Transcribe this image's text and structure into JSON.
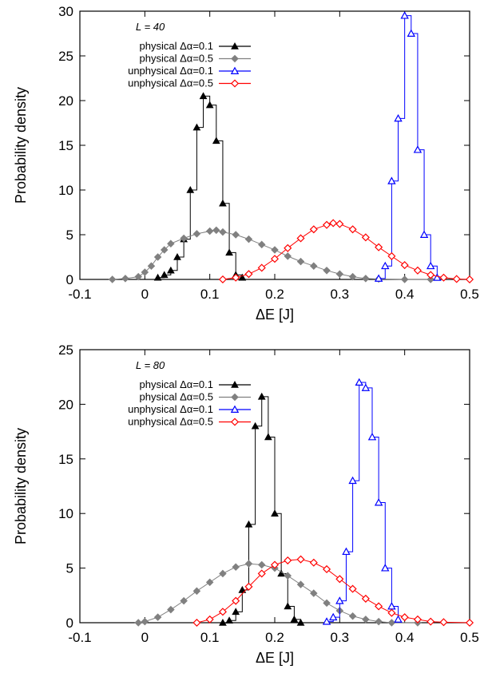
{
  "chart_data": [
    {
      "type": "line",
      "panel": "top",
      "legend_title": "L = 40",
      "xlabel": "ΔE [J]",
      "ylabel": "Probability density",
      "xlim": [
        -0.1,
        0.5
      ],
      "ylim": [
        0,
        30
      ],
      "xticks": [
        -0.1,
        0,
        0.1,
        0.2,
        0.3,
        0.4,
        0.5
      ],
      "yticks": [
        0,
        5,
        10,
        15,
        20,
        25,
        30
      ],
      "grid": false,
      "legend_position": "top-left",
      "series": [
        {
          "name": "physical Δα=0.1",
          "color": "#000000",
          "marker": "filled-triangle",
          "points": [
            [
              0.02,
              0.2
            ],
            [
              0.03,
              0.5
            ],
            [
              0.04,
              1.0
            ],
            [
              0.05,
              2.5
            ],
            [
              0.06,
              4.5
            ],
            [
              0.07,
              10.0
            ],
            [
              0.08,
              17.0
            ],
            [
              0.09,
              20.5
            ],
            [
              0.1,
              19.5
            ],
            [
              0.11,
              15.5
            ],
            [
              0.12,
              8.5
            ],
            [
              0.13,
              3.0
            ],
            [
              0.14,
              0.5
            ],
            [
              0.15,
              0.2
            ]
          ]
        },
        {
          "name": "physical Δα=0.5",
          "color": "#808080",
          "marker": "filled-diamond",
          "points": [
            [
              -0.05,
              0.0
            ],
            [
              -0.03,
              0.1
            ],
            [
              -0.01,
              0.3
            ],
            [
              0.0,
              0.8
            ],
            [
              0.01,
              1.5
            ],
            [
              0.02,
              2.5
            ],
            [
              0.03,
              3.3
            ],
            [
              0.04,
              4.0
            ],
            [
              0.06,
              4.6
            ],
            [
              0.08,
              5.1
            ],
            [
              0.1,
              5.4
            ],
            [
              0.11,
              5.5
            ],
            [
              0.12,
              5.3
            ],
            [
              0.14,
              5.0
            ],
            [
              0.16,
              4.5
            ],
            [
              0.18,
              3.9
            ],
            [
              0.2,
              3.3
            ],
            [
              0.22,
              2.6
            ],
            [
              0.24,
              2.0
            ],
            [
              0.26,
              1.5
            ],
            [
              0.28,
              1.0
            ],
            [
              0.3,
              0.6
            ],
            [
              0.32,
              0.3
            ],
            [
              0.34,
              0.1
            ],
            [
              0.36,
              0.05
            ],
            [
              0.4,
              0.0
            ],
            [
              0.44,
              0.0
            ]
          ]
        },
        {
          "name": "unphysical Δα=0.1",
          "color": "#0000ff",
          "marker": "open-triangle",
          "points": [
            [
              0.36,
              0.1
            ],
            [
              0.37,
              1.5
            ],
            [
              0.38,
              11.0
            ],
            [
              0.39,
              18.0
            ],
            [
              0.4,
              29.5
            ],
            [
              0.41,
              27.5
            ],
            [
              0.42,
              14.5
            ],
            [
              0.43,
              5.0
            ],
            [
              0.44,
              1.5
            ],
            [
              0.45,
              0.2
            ]
          ]
        },
        {
          "name": "unphysical Δα=0.5",
          "color": "#ff0000",
          "marker": "open-diamond",
          "points": [
            [
              0.12,
              0.0
            ],
            [
              0.14,
              0.2
            ],
            [
              0.16,
              0.6
            ],
            [
              0.18,
              1.3
            ],
            [
              0.2,
              2.3
            ],
            [
              0.22,
              3.5
            ],
            [
              0.24,
              4.6
            ],
            [
              0.26,
              5.6
            ],
            [
              0.28,
              6.1
            ],
            [
              0.29,
              6.3
            ],
            [
              0.3,
              6.2
            ],
            [
              0.32,
              5.6
            ],
            [
              0.34,
              4.7
            ],
            [
              0.36,
              3.6
            ],
            [
              0.38,
              2.6
            ],
            [
              0.4,
              1.6
            ],
            [
              0.42,
              1.0
            ],
            [
              0.44,
              0.5
            ],
            [
              0.46,
              0.2
            ],
            [
              0.48,
              0.05
            ],
            [
              0.5,
              0.0
            ]
          ]
        }
      ]
    },
    {
      "type": "line",
      "panel": "bottom",
      "legend_title": "L = 80",
      "xlabel": "ΔE [J]",
      "ylabel": "Probability density",
      "xlim": [
        -0.1,
        0.5
      ],
      "ylim": [
        0,
        25
      ],
      "xticks": [
        -0.1,
        0,
        0.1,
        0.2,
        0.3,
        0.4,
        0.5
      ],
      "yticks": [
        0,
        5,
        10,
        15,
        20,
        25
      ],
      "grid": false,
      "legend_position": "top-left",
      "series": [
        {
          "name": "physical Δα=0.1",
          "color": "#000000",
          "marker": "filled-triangle",
          "points": [
            [
              0.12,
              0.0
            ],
            [
              0.13,
              0.2
            ],
            [
              0.14,
              1.0
            ],
            [
              0.15,
              3.0
            ],
            [
              0.16,
              9.0
            ],
            [
              0.17,
              18.0
            ],
            [
              0.18,
              20.7
            ],
            [
              0.19,
              17.0
            ],
            [
              0.2,
              10.0
            ],
            [
              0.21,
              4.5
            ],
            [
              0.22,
              1.5
            ],
            [
              0.23,
              0.3
            ],
            [
              0.24,
              0.0
            ]
          ]
        },
        {
          "name": "physical Δα=0.5",
          "color": "#808080",
          "marker": "filled-diamond",
          "points": [
            [
              -0.01,
              0.0
            ],
            [
              0.0,
              0.1
            ],
            [
              0.02,
              0.5
            ],
            [
              0.04,
              1.2
            ],
            [
              0.06,
              2.0
            ],
            [
              0.08,
              2.9
            ],
            [
              0.1,
              3.7
            ],
            [
              0.12,
              4.5
            ],
            [
              0.14,
              5.1
            ],
            [
              0.16,
              5.4
            ],
            [
              0.18,
              5.3
            ],
            [
              0.2,
              5.0
            ],
            [
              0.22,
              4.3
            ],
            [
              0.24,
              3.5
            ],
            [
              0.26,
              2.7
            ],
            [
              0.28,
              1.8
            ],
            [
              0.3,
              1.1
            ],
            [
              0.32,
              0.6
            ],
            [
              0.34,
              0.3
            ],
            [
              0.36,
              0.1
            ],
            [
              0.38,
              0.0
            ],
            [
              0.42,
              0.0
            ]
          ]
        },
        {
          "name": "unphysical Δα=0.1",
          "color": "#0000ff",
          "marker": "open-triangle",
          "points": [
            [
              0.28,
              0.1
            ],
            [
              0.29,
              0.5
            ],
            [
              0.3,
              2.0
            ],
            [
              0.31,
              6.5
            ],
            [
              0.32,
              13.0
            ],
            [
              0.33,
              22.0
            ],
            [
              0.34,
              21.5
            ],
            [
              0.35,
              17.0
            ],
            [
              0.36,
              11.0
            ],
            [
              0.37,
              5.0
            ],
            [
              0.38,
              1.5
            ],
            [
              0.39,
              0.3
            ]
          ]
        },
        {
          "name": "unphysical Δα=0.5",
          "color": "#ff0000",
          "marker": "open-diamond",
          "points": [
            [
              0.08,
              0.0
            ],
            [
              0.1,
              0.3
            ],
            [
              0.12,
              1.0
            ],
            [
              0.14,
              2.0
            ],
            [
              0.16,
              3.3
            ],
            [
              0.18,
              4.5
            ],
            [
              0.2,
              5.3
            ],
            [
              0.22,
              5.7
            ],
            [
              0.24,
              5.8
            ],
            [
              0.26,
              5.5
            ],
            [
              0.28,
              4.9
            ],
            [
              0.3,
              4.0
            ],
            [
              0.32,
              3.1
            ],
            [
              0.34,
              2.2
            ],
            [
              0.36,
              1.5
            ],
            [
              0.38,
              0.9
            ],
            [
              0.4,
              0.5
            ],
            [
              0.42,
              0.3
            ],
            [
              0.44,
              0.1
            ],
            [
              0.46,
              0.05
            ],
            [
              0.5,
              0.0
            ]
          ]
        }
      ]
    }
  ]
}
